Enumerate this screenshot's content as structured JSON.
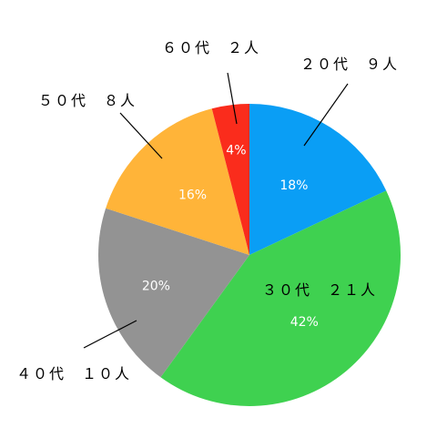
{
  "chart_data": {
    "type": "pie",
    "start_angle_deg": 0,
    "direction": "clockwise",
    "slices": [
      {
        "label": "２０代　９人",
        "count": 9,
        "percent_label": "18%",
        "color": "#0a9ef5"
      },
      {
        "label": "３０代　２１人",
        "count": 21,
        "percent_label": "42%",
        "color": "#3fd150"
      },
      {
        "label": "４０代　１０人",
        "count": 10,
        "percent_label": "20%",
        "color": "#939393"
      },
      {
        "label": "５０代　８人",
        "count": 8,
        "percent_label": "16%",
        "color": "#ffb439"
      },
      {
        "label": "６０代　２人",
        "count": 2,
        "percent_label": "4%",
        "color": "#fa2c1c"
      }
    ]
  }
}
